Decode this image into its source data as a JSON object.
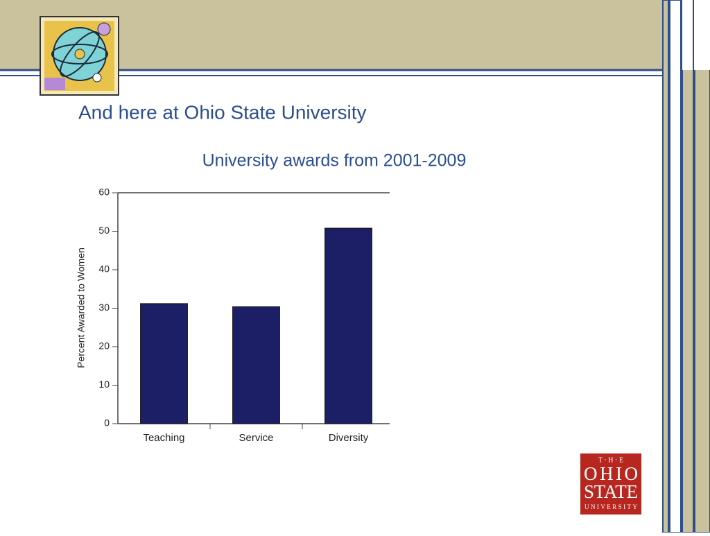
{
  "slide_title": "And here at Ohio State University",
  "logo": {
    "lines": [
      "T · H · E",
      "OHIO",
      "STATE",
      "UNIVERSITY"
    ]
  },
  "chart_data": {
    "type": "bar",
    "title": "University awards from 2001-2009",
    "y_label": "Percent Awarded to Women",
    "categories": [
      "Teaching",
      "Service",
      "Diversity"
    ],
    "values": [
      31.2,
      30.4,
      50.8
    ],
    "color": "#1c1f66",
    "ylim": [
      0,
      60
    ],
    "yticks": [
      0,
      10,
      20,
      30,
      40,
      50,
      60
    ],
    "grid": false
  }
}
